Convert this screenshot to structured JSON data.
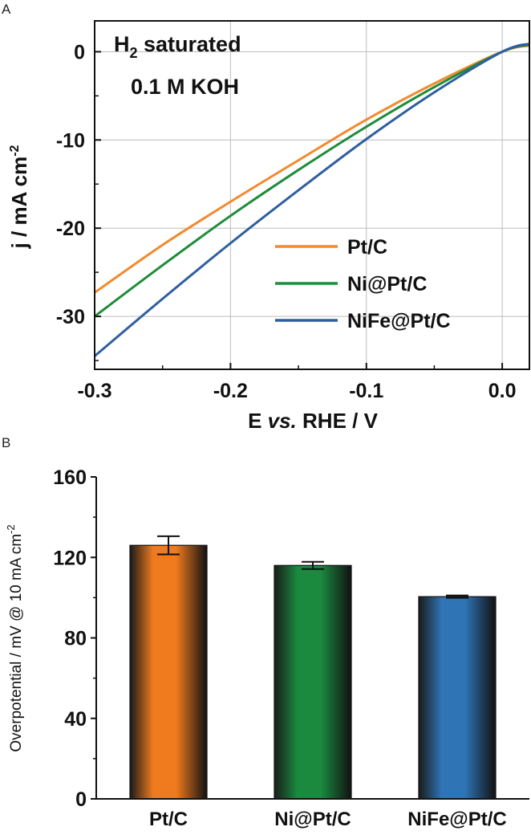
{
  "chart_data": [
    {
      "panel": "A",
      "type": "line",
      "title": "",
      "annotations": {
        "line1_main": "H",
        "line1_sub": "2",
        "line1_rest": " saturated",
        "line2": "0.1 M KOH"
      },
      "xlabel": {
        "pre": "E ",
        "italic": "vs.",
        "post": " RHE / V"
      },
      "ylabel": {
        "main": "j / mA cm",
        "sup": "-2"
      },
      "xlim": [
        -0.3,
        0.02
      ],
      "ylim": [
        -36,
        3.5
      ],
      "xticks": [
        "-0.3",
        "-0.2",
        "-0.1",
        "0.0"
      ],
      "yticks": [
        "0",
        "-10",
        "-20",
        "-30"
      ],
      "grid": true,
      "legend_position": "bottom-right",
      "series": [
        {
          "name": "Pt/C",
          "color": "#F28A2E",
          "x": [
            -0.3,
            -0.25,
            -0.2,
            -0.15,
            -0.1,
            -0.05,
            0.0,
            0.02
          ],
          "y": [
            -27.3,
            -21.9,
            -17.0,
            -12.3,
            -7.7,
            -3.6,
            0.0,
            0.7
          ]
        },
        {
          "name": "Ni@Pt/C",
          "color": "#1E8C3A",
          "x": [
            -0.3,
            -0.25,
            -0.2,
            -0.15,
            -0.1,
            -0.05,
            0.0,
            0.02
          ],
          "y": [
            -30.0,
            -24.2,
            -18.6,
            -13.4,
            -8.5,
            -4.0,
            0.0,
            0.8
          ]
        },
        {
          "name": "NiFe@Pt/C",
          "color": "#2F5F9E",
          "x": [
            -0.3,
            -0.25,
            -0.2,
            -0.15,
            -0.1,
            -0.05,
            0.0,
            0.02
          ],
          "y": [
            -34.5,
            -28.0,
            -21.7,
            -15.7,
            -9.9,
            -4.6,
            0.0,
            0.9
          ]
        }
      ]
    },
    {
      "panel": "B",
      "type": "bar",
      "title": "",
      "ylabel": {
        "main": "Overpotential / mV @ 10 mA cm",
        "sup": "-2"
      },
      "ylim": [
        0,
        160
      ],
      "yticks": [
        "0",
        "40",
        "80",
        "120",
        "160"
      ],
      "categories": [
        "Pt/C",
        "Ni@Pt/C",
        "NiFe@Pt/C"
      ],
      "values": [
        126,
        116,
        100.5
      ],
      "errors": [
        4.5,
        1.8,
        0.6
      ],
      "colors": [
        "#F07A1E",
        "#1B8A3F",
        "#2F74B5"
      ]
    }
  ]
}
